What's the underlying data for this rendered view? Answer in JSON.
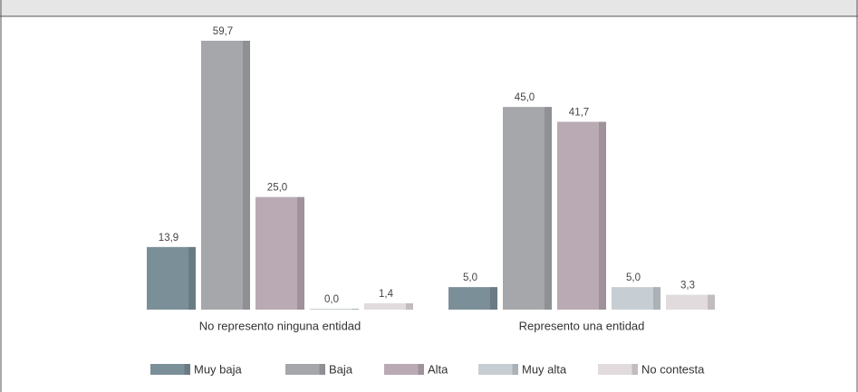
{
  "chart_data": {
    "type": "bar",
    "categories": [
      "No represento ninguna entidad",
      "Represento una entidad"
    ],
    "series": [
      {
        "name": "Muy baja",
        "color": "#7b8f99",
        "values": [
          13.9,
          5.0
        ],
        "value_labels": [
          "13,9",
          "5,0"
        ]
      },
      {
        "name": "Baja",
        "color": "#a5a7ab",
        "values": [
          59.7,
          45.0
        ],
        "value_labels": [
          "59,7",
          "45,0"
        ]
      },
      {
        "name": "Alta",
        "color": "#b9aab3",
        "values": [
          25.0,
          41.7
        ],
        "value_labels": [
          "25,0",
          "41,7"
        ]
      },
      {
        "name": "Muy alta",
        "color": "#c7ced3",
        "values": [
          0.0,
          5.0
        ],
        "value_labels": [
          "0,0",
          "5,0"
        ]
      },
      {
        "name": "No contesta",
        "color": "#e1dbde",
        "values": [
          1.4,
          3.3
        ],
        "value_labels": [
          "1,4",
          "3,3"
        ]
      }
    ],
    "legend": "bottom"
  }
}
